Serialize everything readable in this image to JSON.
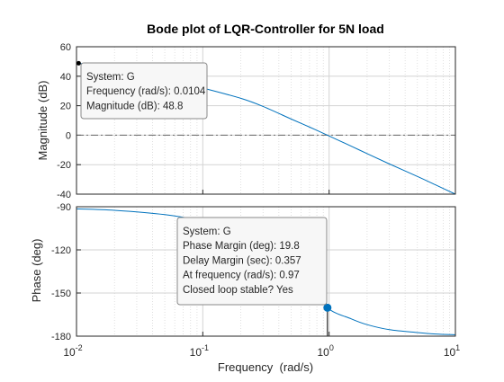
{
  "chart_data": [
    {
      "type": "line",
      "panel": "magnitude",
      "title": "Bode plot of LQR-Controller for 5N load",
      "ylabel": "Magnitude (dB)",
      "xscale": "log",
      "xlim": [
        0.01,
        10
      ],
      "ylim": [
        -40,
        60
      ],
      "yticks": [
        "60",
        "40",
        "20",
        "0",
        "-20",
        "-40"
      ],
      "grid": true,
      "reference_line": {
        "y": 0,
        "style": "dash-dot"
      },
      "series": [
        {
          "color": "#0072BD",
          "x": [
            0.0104,
            0.02,
            0.05,
            0.1,
            0.2,
            0.3,
            0.5,
            0.7,
            0.97,
            1.5,
            2,
            3,
            5,
            7,
            10
          ],
          "y": [
            48.8,
            45.5,
            38.5,
            32.0,
            25.0,
            19.5,
            11.0,
            5.5,
            0,
            -7.5,
            -12.5,
            -19.5,
            -28.0,
            -33.8,
            -40.0
          ]
        }
      ],
      "datatip": {
        "x": 0.0104,
        "y": 48.8,
        "lines": [
          "System: G",
          "Frequency (rad/s): 0.0104",
          "Magnitude (dB): 48.8"
        ]
      }
    },
    {
      "type": "line",
      "panel": "phase",
      "xlabel": "Frequency  (rad/s)",
      "ylabel": "Phase (deg)",
      "xscale": "log",
      "xlim": [
        0.01,
        10
      ],
      "ylim": [
        -180,
        -90
      ],
      "yticks": [
        "-90",
        "-120",
        "-150",
        "-180"
      ],
      "xticks": [
        {
          "base": "10",
          "exp": "-2"
        },
        {
          "base": "10",
          "exp": "-1"
        },
        {
          "base": "10",
          "exp": "0"
        },
        {
          "base": "10",
          "exp": "1"
        }
      ],
      "grid": true,
      "reference_line": {
        "y": -180,
        "style": "dash-dot"
      },
      "series": [
        {
          "color": "#0072BD",
          "x": [
            0.01,
            0.02,
            0.05,
            0.1,
            0.2,
            0.3,
            0.5,
            0.7,
            0.97,
            1.5,
            2,
            3,
            5,
            7,
            10
          ],
          "y": [
            -91.5,
            -92.5,
            -95.5,
            -100.0,
            -107.0,
            -115.0,
            -128.0,
            -142.0,
            -160.2,
            -168.0,
            -172.0,
            -175.5,
            -177.5,
            -178.5,
            -179.0
          ]
        }
      ],
      "margin_marker": {
        "x": 0.97,
        "y": -160.2
      },
      "datatip": {
        "x": 0.97,
        "y": -160.2,
        "lines": [
          "System: G",
          "Phase Margin (deg): 19.8",
          "Delay Margin (sec): 0.357",
          "At frequency (rad/s): 0.97",
          "Closed loop stable? Yes"
        ]
      }
    }
  ]
}
